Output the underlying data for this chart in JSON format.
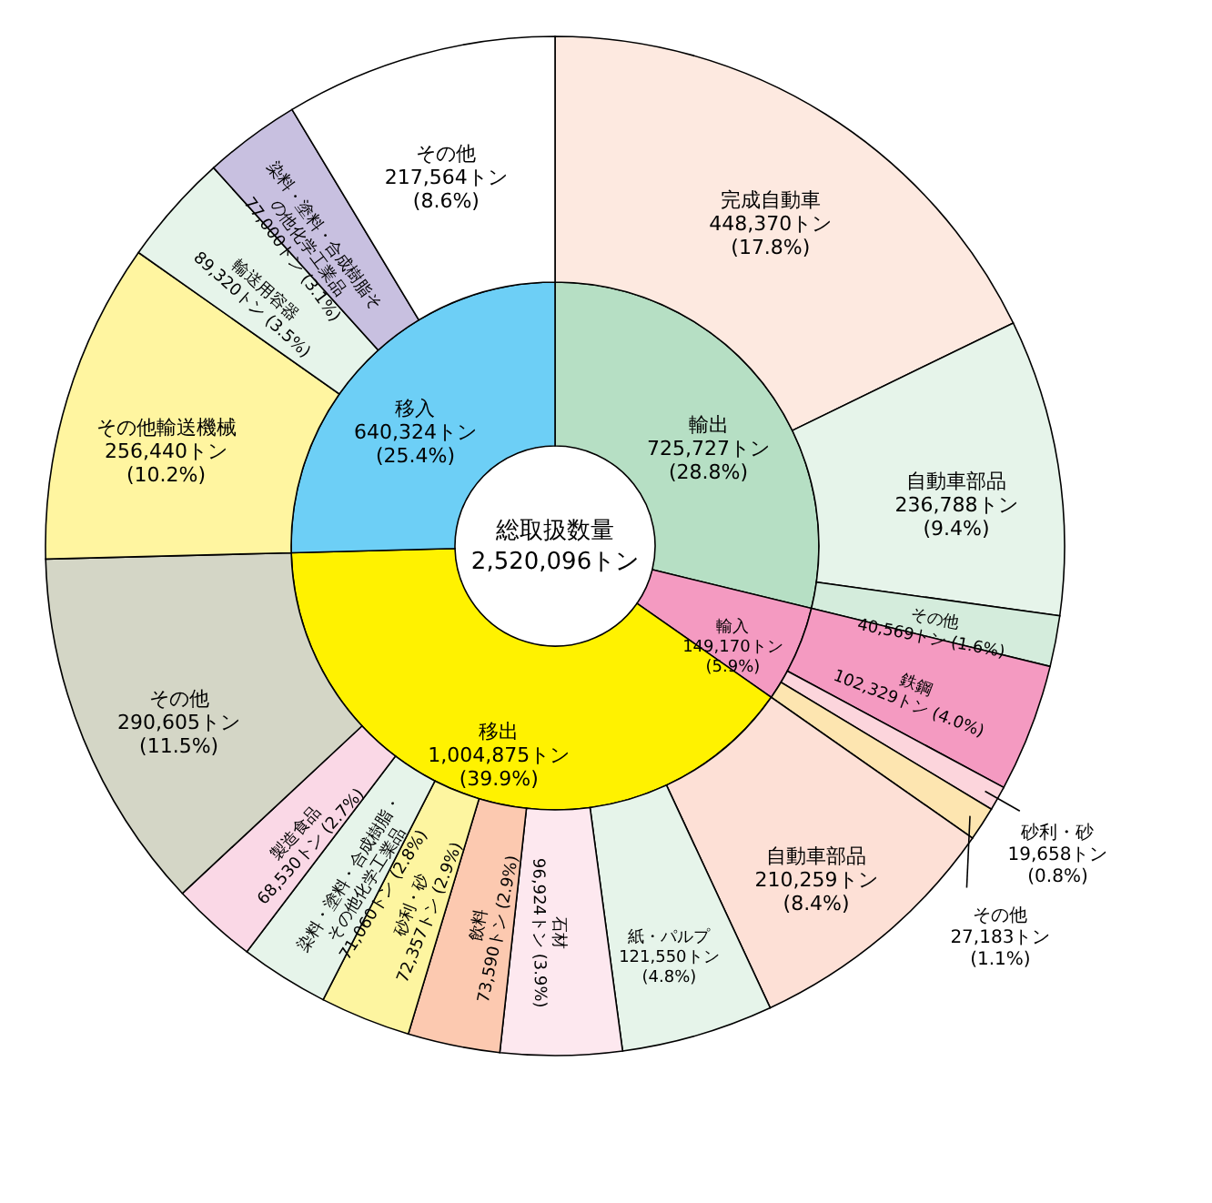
{
  "chart_data": [
    {
      "type": "donut",
      "annotations": [
        "総取扱数量",
        "2,520,096トン"
      ],
      "categories": [
        "輸出",
        "輸入",
        "移出",
        "移入"
      ],
      "values": [
        725727,
        149170,
        1004875,
        640324
      ],
      "colors": [
        "#b6dfc4",
        "#f49ac1",
        "#fff200",
        "#6dcff6"
      ],
      "value_labels": [
        "725,727トン (28.8%)",
        "149,170トン (5.9%)",
        "1,004,875トン (39.9%)",
        "640,324トン (25.4%)"
      ]
    },
    {
      "type": "donut",
      "categories": [
        "完成自動車",
        "自動車部品",
        "その他",
        "鉄鋼",
        "砂利・砂",
        "その他",
        "自動車部品",
        "紙・パルプ",
        "石材",
        "飲料",
        "砂利・砂",
        "染料・塗料・合成樹脂・その他化学工業品",
        "製造食品",
        "その他",
        "その他輸送機械",
        "輸送用容器",
        "染料・塗料・合成樹脂その他化学工業品",
        "その他"
      ],
      "values": [
        448370,
        236788,
        40569,
        102329,
        19658,
        27183,
        210259,
        121550,
        96924,
        73590,
        72357,
        71060,
        68530,
        290605,
        256440,
        89320,
        77000,
        217564
      ],
      "colors": [
        "#fde9e0",
        "#e6f4ea",
        "#d4ecdc",
        "#f49ac1",
        "#fcd5dc",
        "#fde5b0",
        "#fde0d6",
        "#e6f4ea",
        "#fde8ef",
        "#fcc9b0",
        "#fdf5a0",
        "#e6f4ea",
        "#fad8e6",
        "#d4d6c6",
        "#fff5a0",
        "#e6f4ea",
        "#c8c0e0",
        "#ffffff"
      ],
      "value_labels": [
        "448,370トン (17.8%)",
        "236,788トン (9.4%)",
        "40,569トン (1.6%)",
        "102,329トン (4.0%)",
        "19,658トン (0.8%)",
        "27,183トン (1.1%)",
        "210,259トン (8.4%)",
        "121,550トン (4.8%)",
        "96,924トン (3.9%)",
        "73,590トン (2.9%)",
        "72,357トン (2.9%)",
        "71,060トン (2.8%)",
        "68,530トン (2.7%)",
        "290,605トン (11.5%)",
        "256,440トン (10.2%)",
        "89,320トン (3.5%)",
        "77,000トン (3.1%)",
        "217,564トン (8.6%)"
      ]
    }
  ]
}
